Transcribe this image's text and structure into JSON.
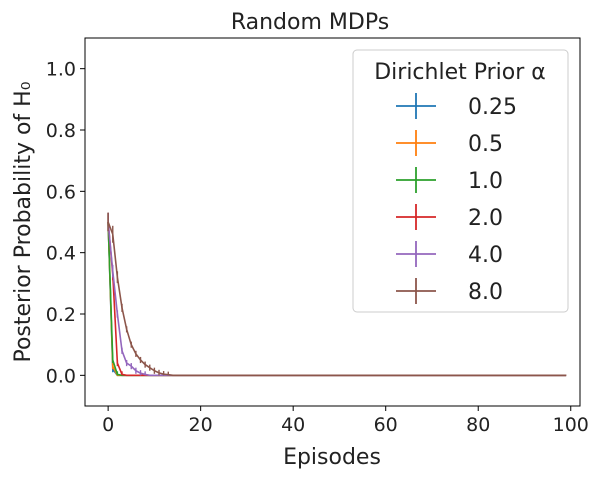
{
  "chart_data": {
    "type": "line",
    "title": "Random MDPs",
    "xlabel": "Episodes",
    "ylabel": "Posterior Probability of H₀",
    "xlim": [
      -5,
      102
    ],
    "ylim": [
      -0.1,
      1.1
    ],
    "xticks": [
      0,
      20,
      40,
      60,
      80,
      100
    ],
    "xtick_labels": [
      "0",
      "20",
      "40",
      "60",
      "80",
      "100"
    ],
    "yticks": [
      0.0,
      0.2,
      0.4,
      0.6,
      0.8,
      1.0
    ],
    "ytick_labels": [
      "0.0",
      "0.2",
      "0.4",
      "0.6",
      "0.8",
      "1.0"
    ],
    "grid": false,
    "legend": {
      "title": "Dirichlet Prior α",
      "placement": "top-right"
    },
    "x_range": [
      0,
      99
    ],
    "series": [
      {
        "name": "0.25",
        "color": "#1f77b4",
        "values": [
          0.5,
          0.02,
          0.0
        ]
      },
      {
        "name": "0.5",
        "color": "#ff7f0e",
        "values": [
          0.5,
          0.03,
          0.0
        ]
      },
      {
        "name": "1.0",
        "color": "#2ca02c",
        "values": [
          0.5,
          0.05,
          0.003,
          0.0
        ]
      },
      {
        "name": "2.0",
        "color": "#d62728",
        "values": [
          0.5,
          0.33,
          0.04,
          0.003,
          0.0
        ]
      },
      {
        "name": "4.0",
        "color": "#9467bd",
        "values": [
          0.5,
          0.34,
          0.2,
          0.08,
          0.04,
          0.03,
          0.015,
          0.007,
          0.003,
          0.0
        ]
      },
      {
        "name": "8.0",
        "color": "#8c564b",
        "values": [
          0.5,
          0.46,
          0.32,
          0.22,
          0.15,
          0.1,
          0.07,
          0.05,
          0.035,
          0.025,
          0.015,
          0.008,
          0.004,
          0.002,
          0.0
        ]
      }
    ]
  }
}
